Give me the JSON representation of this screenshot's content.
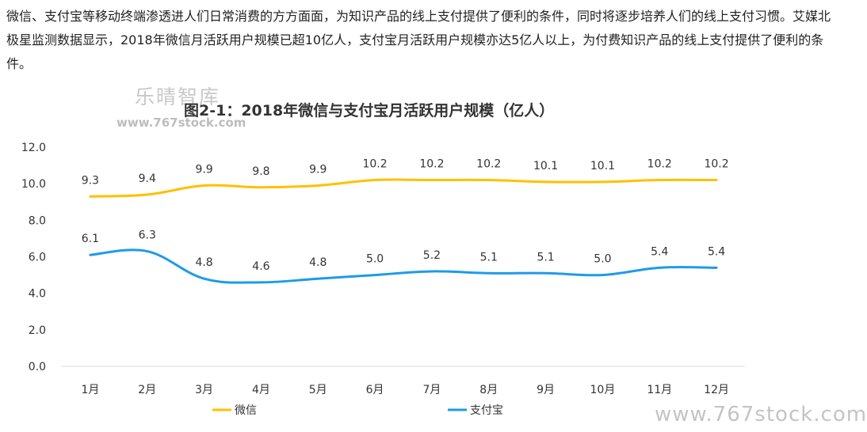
{
  "article": {
    "paragraph": "微信、支付宝等移动终端渗透进人们日常消费的方方面面，为知识产品的线上支付提供了便利的条件，同时将逐步培养人们的线上支付习惯。艾媒北极星监测数据显示，2018年微信月活跃用户规模已超10亿人，支付宝月活跃用户规模亦达5亿人以上，为付费知识产品的线上支付提供了便利的条件。"
  },
  "watermarks": {
    "brand": "乐晴智库",
    "site_small": "www.767stock.com",
    "site_large": "www.767stock.com"
  },
  "chart_data": {
    "type": "line",
    "title": "图2-1：2018年微信与支付宝月活跃用户规模（亿人）",
    "categories": [
      "1月",
      "2月",
      "3月",
      "4月",
      "5月",
      "6月",
      "7月",
      "8月",
      "9月",
      "10月",
      "11月",
      "12月"
    ],
    "series": [
      {
        "name": "微信",
        "color": "#FFC000",
        "values": [
          9.3,
          9.4,
          9.9,
          9.8,
          9.9,
          10.2,
          10.2,
          10.2,
          10.1,
          10.1,
          10.2,
          10.2
        ]
      },
      {
        "name": "支付宝",
        "color": "#1E9BE8",
        "values": [
          6.1,
          6.3,
          4.8,
          4.6,
          4.8,
          5.0,
          5.2,
          5.1,
          5.1,
          5.0,
          5.4,
          5.4
        ]
      }
    ],
    "ylim": [
      0,
      12
    ],
    "yticks": [
      "0.0",
      "2.0",
      "4.0",
      "6.0",
      "8.0",
      "10.0",
      "12.0"
    ],
    "grid": false,
    "legend_position": "bottom",
    "smooth": true
  }
}
